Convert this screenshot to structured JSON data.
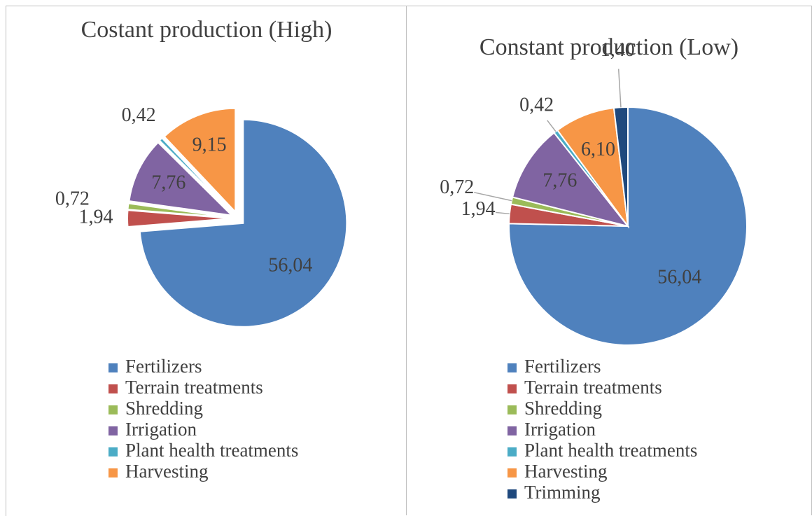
{
  "chart_data": [
    {
      "type": "pie",
      "title": "Costant production (High)",
      "exploded": true,
      "categories": [
        "Fertilizers",
        "Terrain treatments",
        "Shredding",
        "Irrigation",
        "Plant health treatments",
        "Harvesting"
      ],
      "values": [
        56.04,
        1.94,
        0.72,
        7.76,
        0.42,
        9.15
      ],
      "value_labels": [
        "56,04",
        "1,94",
        "0,72",
        "7,76",
        "0,42",
        "9,15"
      ],
      "colors": [
        "#4f81bd",
        "#c0504d",
        "#9bbb59",
        "#8064a2",
        "#4bacc6",
        "#f79646"
      ]
    },
    {
      "type": "pie",
      "title": "Constant production (Low)",
      "exploded": false,
      "categories": [
        "Fertilizers",
        "Terrain treatments",
        "Shredding",
        "Irrigation",
        "Plant health treatments",
        "Harvesting",
        "Trimming"
      ],
      "values": [
        56.04,
        1.94,
        0.72,
        7.76,
        0.42,
        6.1,
        1.4
      ],
      "value_labels": [
        "56,04",
        "1,94",
        "0,72",
        "7,76",
        "0,42",
        "6,10",
        "1,40"
      ],
      "colors": [
        "#4f81bd",
        "#c0504d",
        "#9bbb59",
        "#8064a2",
        "#4bacc6",
        "#f79646",
        "#1f497d"
      ]
    }
  ]
}
